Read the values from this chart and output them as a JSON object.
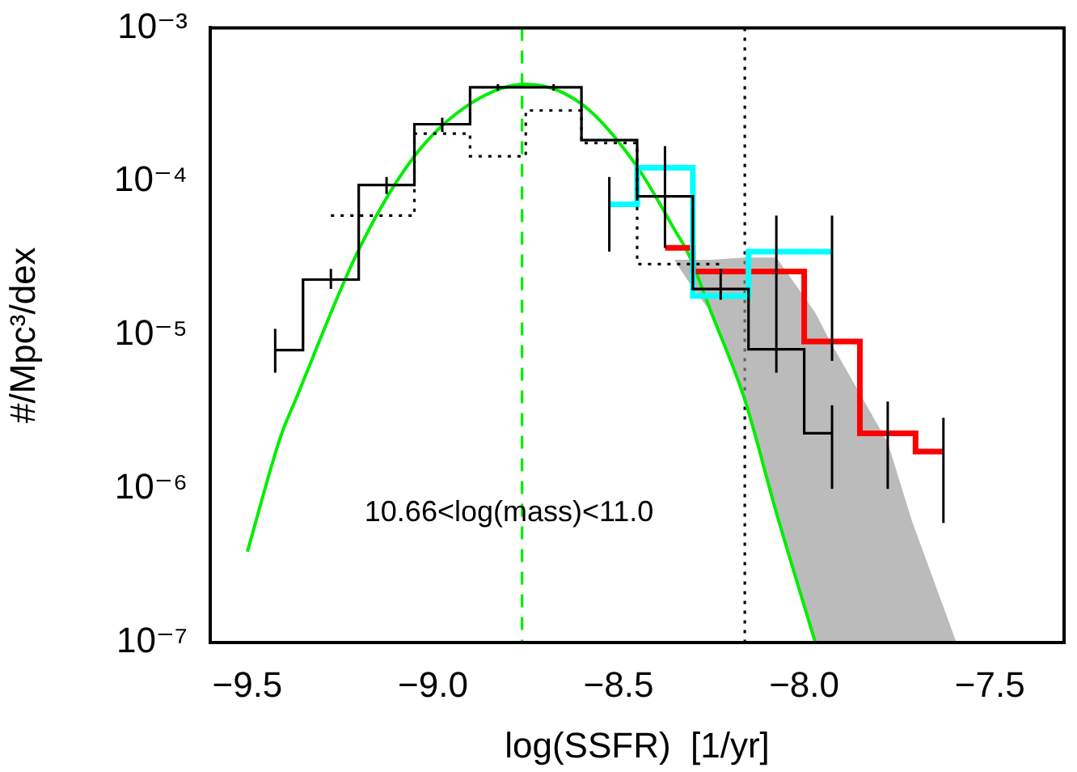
{
  "chart_data": {
    "type": "step",
    "xlabel": "log(SSFR)  [1/yr]",
    "ylabel": "#/Mpc³/dex",
    "log": "y",
    "grid": false,
    "legend": false,
    "xlim": [
      -9.6,
      -7.3
    ],
    "ylim": [
      1e-07,
      0.001
    ],
    "xticks": [
      {
        "value": -9.5,
        "label": "−9.5"
      },
      {
        "value": -9.0,
        "label": "−9.0"
      },
      {
        "value": -8.5,
        "label": "−8.5"
      },
      {
        "value": -8.0,
        "label": "−8.0"
      },
      {
        "value": -7.5,
        "label": "−7.5"
      }
    ],
    "yticks": [
      {
        "value": 1e-07,
        "label": "10⁻⁷"
      },
      {
        "value": 1e-06,
        "label": "10⁻⁶"
      },
      {
        "value": 1e-05,
        "label": "10⁻⁵"
      },
      {
        "value": 0.0001,
        "label": "10⁻⁴"
      },
      {
        "value": 0.001,
        "label": "10⁻³"
      }
    ],
    "series": [
      {
        "color": "#000000",
        "line_style": "solid",
        "x": [
          -9.425,
          -9.275,
          -9.125,
          -8.975,
          -8.825,
          -8.675,
          -8.525,
          -8.375,
          -8.225,
          -8.075,
          -7.925
        ],
        "values": [
          8e-06,
          2.3e-05,
          9.5e-05,
          0.000236,
          0.00041,
          0.00041,
          0.000186,
          8e-05,
          2e-05,
          8.1e-06,
          2.3e-06
        ],
        "errors": [
          [
            5.7e-06,
            1.1e-05
          ],
          [
            2e-05,
            2.7e-05
          ],
          [
            8.3e-05,
            0.000107
          ],
          [
            0.00021,
            0.00026
          ],
          [
            0.00039,
            0.00043
          ],
          [
            0.00039,
            0.00043
          ],
          null,
          [
            3.7e-05,
            0.00017
          ],
          [
            1.7e-05,
            2.7e-05
          ],
          [
            5.7e-06,
            6e-05
          ],
          [
            1e-06,
            3.5e-06
          ]
        ]
      },
      {
        "color": "#000000",
        "line_style": "dotted",
        "x": [
          -9.275,
          -9.125,
          -8.975,
          -8.825,
          -8.675,
          -8.525,
          -8.375,
          -8.225
        ],
        "values": [
          6e-05,
          6e-05,
          0.000205,
          0.000146,
          0.00029,
          0.000178,
          2.9e-05,
          2.9e-05
        ]
      },
      {
        "color": "#00ffff",
        "line_style": "solid",
        "x": [
          -8.525,
          -8.375,
          -8.225,
          -8.075,
          -7.925
        ],
        "values": [
          7.1e-05,
          0.000123,
          1.8e-05,
          3.5e-05,
          3.5e-05
        ],
        "errors": [
          [
            3.5e-05,
            0.000107
          ],
          null,
          null,
          null,
          null
        ]
      },
      {
        "color": "#ff0000",
        "line_style": "solid",
        "x": [
          -8.375,
          -8.225,
          -8.075,
          -7.925,
          -7.775,
          -7.625
        ],
        "values": [
          3.7e-05,
          2.6e-05,
          2.6e-05,
          9.1e-06,
          2.3e-06,
          1.75e-06
        ],
        "errors": [
          null,
          null,
          null,
          [
            6.8e-06,
            6e-05
          ],
          [
            1e-06,
            3.7e-06
          ],
          [
            6e-07,
            2.9e-06
          ]
        ]
      },
      {
        "type": "line",
        "color": "#00ee00",
        "line_style": "solid",
        "x": [
          -9.5,
          -9.41,
          -9.37,
          -9.2,
          -9.05,
          -8.9,
          -8.75,
          -8.6,
          -8.455,
          -8.35,
          -8.31,
          -8.25,
          -8.16,
          -8.075,
          -7.97,
          -7.93,
          -7.775,
          -7.71,
          -7.59
        ],
        "values": [
          3.9e-07,
          2.2e-06,
          3.8e-06,
          3.6e-05,
          0.000146,
          0.00032,
          0.00043,
          0.00032,
          0.00013,
          4.9e-05,
          3.3e-05,
          1.4e-05,
          3.8e-06,
          7e-07,
          1e-07,
          null,
          null,
          null,
          null
        ],
        "lower": [
          null,
          null,
          null,
          null,
          null,
          null,
          null,
          null,
          null,
          3.1e-05,
          2.2e-05,
          1.4e-05,
          3.8e-06,
          7e-07,
          1e-07,
          1e-07,
          1e-07,
          1e-07,
          1e-07
        ],
        "upper": [
          null,
          null,
          null,
          null,
          null,
          null,
          null,
          null,
          null,
          3.1e-05,
          3.1e-05,
          3.1e-05,
          3.2e-05,
          3.2e-05,
          1.4e-05,
          9.1e-06,
          2e-06,
          6.2e-07,
          1e-07
        ]
      }
    ],
    "ref_lines": [
      {
        "axis": "x",
        "value": -8.76,
        "color": "#00ee00",
        "line_style": "dashed"
      },
      {
        "axis": "x",
        "value": -8.16,
        "color": "#000000",
        "line_style": "dotted"
      }
    ],
    "annotations": [
      "10.66<log(mass)<11.0"
    ]
  }
}
